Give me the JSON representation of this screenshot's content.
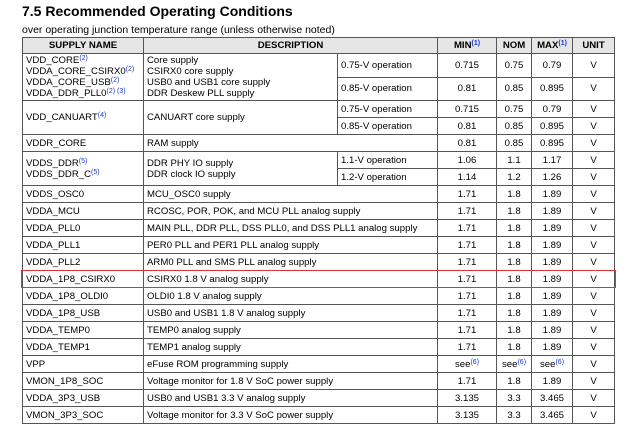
{
  "title": "7.5 Recommended Operating Conditions",
  "subtitle": "over operating junction temperature range (unless otherwise noted)",
  "table": {
    "header": [
      {
        "text": "SUPPLY NAME"
      },
      {
        "text": "DESCRIPTION"
      },
      {
        "text": "MIN",
        "note": "(1)"
      },
      {
        "text": "NOM"
      },
      {
        "text": "MAX",
        "note": "(1)"
      },
      {
        "text": "UNIT"
      }
    ],
    "rows": [
      {
        "names": [
          {
            "text": "VDD_CORE",
            "note": "(2)"
          },
          {
            "text": "VDDA_CORE_CSIRX0",
            "note": "(2)"
          },
          {
            "text": "VDDA_CORE_USB",
            "note": "(2)"
          },
          {
            "text": "VDDA_DDR_PLL0",
            "note": "(2) (3)"
          }
        ],
        "description": [
          "Core supply",
          "CSIRX0 core supply",
          "USB0 and USB1 core supply",
          "DDR Deskew PLL supply"
        ],
        "conditions": [
          {
            "label": "0.75-V operation",
            "min": "0.715",
            "nom": "0.75",
            "max": "0.79",
            "unit": "V"
          },
          {
            "label": "0.85-V operation",
            "min": "0.81",
            "nom": "0.85",
            "max": "0.895",
            "unit": "V"
          }
        ]
      },
      {
        "names": [
          {
            "text": "VDD_CANUART",
            "note": "(4)"
          }
        ],
        "description": [
          "CANUART core supply"
        ],
        "conditions": [
          {
            "label": "0.75-V operation",
            "min": "0.715",
            "nom": "0.75",
            "max": "0.79",
            "unit": "V"
          },
          {
            "label": "0.85-V operation",
            "min": "0.81",
            "nom": "0.85",
            "max": "0.895",
            "unit": "V"
          }
        ]
      },
      {
        "names": [
          {
            "text": "VDDR_CORE"
          }
        ],
        "description": [
          "RAM supply"
        ],
        "conditions": [
          {
            "min": "0.81",
            "nom": "0.85",
            "max": "0.895",
            "unit": "V"
          }
        ]
      },
      {
        "names": [
          {
            "text": "VDDS_DDR",
            "note": "(5)"
          },
          {
            "text": "VDDS_DDR_C",
            "note": "(5)"
          }
        ],
        "description": [
          "DDR PHY IO supply",
          "DDR clock IO supply"
        ],
        "conditions": [
          {
            "label": "1.1-V operation",
            "min": "1.06",
            "nom": "1.1",
            "max": "1.17",
            "unit": "V"
          },
          {
            "label": "1.2-V operation",
            "min": "1.14",
            "nom": "1.2",
            "max": "1.26",
            "unit": "V"
          }
        ]
      },
      {
        "names": [
          {
            "text": "VDDS_OSC0"
          }
        ],
        "description": [
          "MCU_OSC0 supply"
        ],
        "conditions": [
          {
            "min": "1.71",
            "nom": "1.8",
            "max": "1.89",
            "unit": "V"
          }
        ]
      },
      {
        "names": [
          {
            "text": "VDDA_MCU"
          }
        ],
        "description": [
          "RCOSC, POR, POK, and MCU PLL analog supply"
        ],
        "conditions": [
          {
            "min": "1.71",
            "nom": "1.8",
            "max": "1.89",
            "unit": "V"
          }
        ]
      },
      {
        "names": [
          {
            "text": "VDDA_PLL0"
          }
        ],
        "description": [
          "MAIN PLL, DDR PLL, DSS PLL0, and DSS PLL1 analog supply"
        ],
        "conditions": [
          {
            "min": "1.71",
            "nom": "1.8",
            "max": "1.89",
            "unit": "V"
          }
        ]
      },
      {
        "names": [
          {
            "text": "VDDA_PLL1"
          }
        ],
        "description": [
          "PER0 PLL and PER1 PLL analog supply"
        ],
        "conditions": [
          {
            "min": "1.71",
            "nom": "1.8",
            "max": "1.89",
            "unit": "V"
          }
        ]
      },
      {
        "names": [
          {
            "text": "VDDA_PLL2"
          }
        ],
        "description": [
          "ARM0 PLL and SMS PLL analog supply"
        ],
        "conditions": [
          {
            "min": "1.71",
            "nom": "1.8",
            "max": "1.89",
            "unit": "V"
          }
        ]
      },
      {
        "names": [
          {
            "text": "VDDA_1P8_CSIRX0"
          }
        ],
        "description": [
          "CSIRX0 1.8 V analog supply"
        ],
        "conditions": [
          {
            "min": "1.71",
            "nom": "1.8",
            "max": "1.89",
            "unit": "V"
          }
        ],
        "highlight": true
      },
      {
        "names": [
          {
            "text": "VDDA_1P8_OLDI0"
          }
        ],
        "description": [
          "OLDI0 1.8 V analog supply"
        ],
        "conditions": [
          {
            "min": "1.71",
            "nom": "1.8",
            "max": "1.89",
            "unit": "V"
          }
        ]
      },
      {
        "names": [
          {
            "text": "VDDA_1P8_USB"
          }
        ],
        "description": [
          "USB0 and USB1 1.8 V analog supply"
        ],
        "conditions": [
          {
            "min": "1.71",
            "nom": "1.8",
            "max": "1.89",
            "unit": "V"
          }
        ]
      },
      {
        "names": [
          {
            "text": "VDDA_TEMP0"
          }
        ],
        "description": [
          "TEMP0 analog supply"
        ],
        "conditions": [
          {
            "min": "1.71",
            "nom": "1.8",
            "max": "1.89",
            "unit": "V"
          }
        ]
      },
      {
        "names": [
          {
            "text": "VDDA_TEMP1"
          }
        ],
        "description": [
          "TEMP1 analog supply"
        ],
        "conditions": [
          {
            "min": "1.71",
            "nom": "1.8",
            "max": "1.89",
            "unit": "V"
          }
        ]
      },
      {
        "names": [
          {
            "text": "VPP"
          }
        ],
        "description": [
          "eFuse ROM programming supply"
        ],
        "conditions": [
          {
            "min": {
              "text": "see",
              "note": "(6)"
            },
            "nom": {
              "text": "see",
              "note": "(6)"
            },
            "max": {
              "text": "see",
              "note": "(6)"
            },
            "unit": "V"
          }
        ]
      },
      {
        "names": [
          {
            "text": "VMON_1P8_SOC"
          }
        ],
        "description": [
          "Voltage monitor for 1.8 V SoC power supply"
        ],
        "conditions": [
          {
            "min": "1.71",
            "nom": "1.8",
            "max": "1.89",
            "unit": "V"
          }
        ]
      },
      {
        "names": [
          {
            "text": "VDDA_3P3_USB"
          }
        ],
        "description": [
          "USB0 and USB1 3.3 V analog supply"
        ],
        "conditions": [
          {
            "min": "3.135",
            "nom": "3.3",
            "max": "3.465",
            "unit": "V"
          }
        ]
      },
      {
        "names": [
          {
            "text": "VMON_3P3_SOC"
          }
        ],
        "description": [
          "Voltage monitor for 3.3 V SoC power supply"
        ],
        "conditions": [
          {
            "min": "3.135",
            "nom": "3.3",
            "max": "3.465",
            "unit": "V"
          }
        ]
      }
    ]
  }
}
